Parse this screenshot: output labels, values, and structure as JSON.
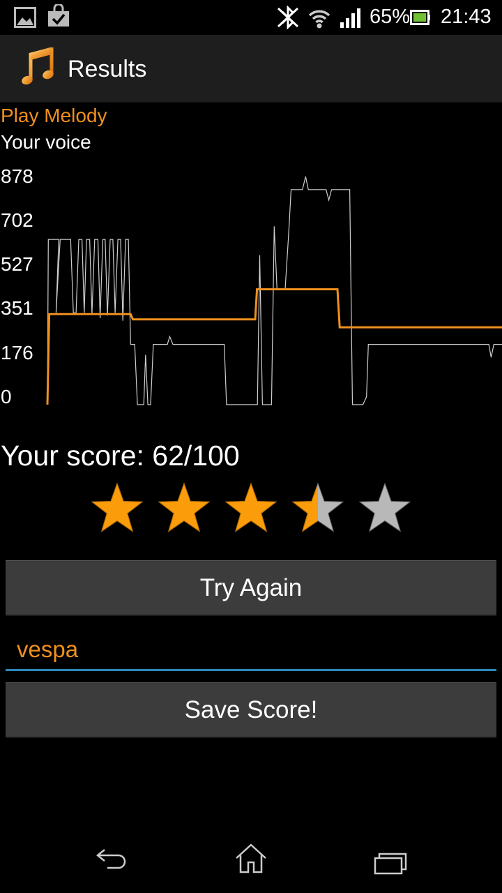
{
  "status_bar": {
    "battery_percent": "65%",
    "time": "21:43",
    "icons": [
      "image-icon",
      "shopping-bag-icon",
      "bluetooth-off-icon",
      "wifi-icon",
      "signal-icon",
      "battery-icon"
    ]
  },
  "action_bar": {
    "icon": "music-note-icon",
    "title": "Results"
  },
  "play_melody_label": "Play Melody",
  "your_voice_label": "Your voice",
  "chart_data": {
    "type": "line",
    "y_ticks": [
      "878",
      "702",
      "527",
      "351",
      "176",
      "0"
    ],
    "ylim": [
      0,
      878
    ],
    "x_range": [
      0,
      100
    ],
    "series": [
      {
        "name": "Play Melody",
        "color": "#f0901e",
        "points": [
          [
            0,
            0
          ],
          [
            0.4,
            345
          ],
          [
            18.3,
            345
          ],
          [
            18.8,
            325
          ],
          [
            45.7,
            325
          ],
          [
            46.1,
            440
          ],
          [
            63.8,
            440
          ],
          [
            64.3,
            295
          ],
          [
            100,
            295
          ]
        ]
      },
      {
        "name": "Your voice",
        "color": "#cfcfcf",
        "points": [
          [
            0,
            0
          ],
          [
            0.2,
            630
          ],
          [
            2.5,
            630
          ],
          [
            1.9,
            350
          ],
          [
            2.8,
            630
          ],
          [
            5.1,
            630
          ],
          [
            5.7,
            350
          ],
          [
            6.3,
            350
          ],
          [
            6.9,
            630
          ],
          [
            7.6,
            630
          ],
          [
            8.1,
            350
          ],
          [
            8.6,
            630
          ],
          [
            9.3,
            630
          ],
          [
            9.8,
            345
          ],
          [
            10.4,
            630
          ],
          [
            11.1,
            630
          ],
          [
            11.6,
            330
          ],
          [
            12.2,
            630
          ],
          [
            12.7,
            630
          ],
          [
            13.2,
            340
          ],
          [
            13.8,
            630
          ],
          [
            14.4,
            630
          ],
          [
            14.9,
            350
          ],
          [
            15.5,
            630
          ],
          [
            16.1,
            630
          ],
          [
            16.6,
            320
          ],
          [
            17.2,
            630
          ],
          [
            17.8,
            630
          ],
          [
            18.3,
            230
          ],
          [
            19.2,
            230
          ],
          [
            19.8,
            0
          ],
          [
            20.3,
            0
          ],
          [
            21.2,
            0
          ],
          [
            21.6,
            190
          ],
          [
            22.1,
            0
          ],
          [
            22.7,
            0
          ],
          [
            23.3,
            230
          ],
          [
            26.4,
            230
          ],
          [
            26.9,
            260
          ],
          [
            27.6,
            230
          ],
          [
            30.2,
            230
          ],
          [
            30.7,
            230
          ],
          [
            38.9,
            230
          ],
          [
            39.4,
            0
          ],
          [
            46.2,
            0
          ],
          [
            46.7,
            570
          ],
          [
            47.3,
            0
          ],
          [
            49.3,
            0
          ],
          [
            49.9,
            680
          ],
          [
            50.5,
            440
          ],
          [
            52.3,
            440
          ],
          [
            53.1,
            660
          ],
          [
            53.6,
            820
          ],
          [
            54.2,
            820
          ],
          [
            56.1,
            820
          ],
          [
            56.8,
            870
          ],
          [
            57.4,
            820
          ],
          [
            61.3,
            820
          ],
          [
            61.9,
            780
          ],
          [
            62.5,
            820
          ],
          [
            66.5,
            820
          ],
          [
            67.1,
            0
          ],
          [
            69.4,
            0
          ],
          [
            70.2,
            30
          ],
          [
            70.6,
            230
          ],
          [
            97.1,
            230
          ],
          [
            97.6,
            180
          ],
          [
            98.2,
            230
          ],
          [
            100,
            230
          ]
        ]
      }
    ]
  },
  "score_text": "Your score: 62/100",
  "rating": {
    "value": 3.5,
    "max": 5,
    "fill_color": "#fb9c0a",
    "empty_color": "#b8b8b8"
  },
  "try_again_label": "Try Again",
  "name_input": {
    "value": "vespa"
  },
  "save_score_label": "Save Score!",
  "nav_bar": {
    "icons": [
      "back-icon",
      "home-icon",
      "recent-apps-icon"
    ]
  }
}
